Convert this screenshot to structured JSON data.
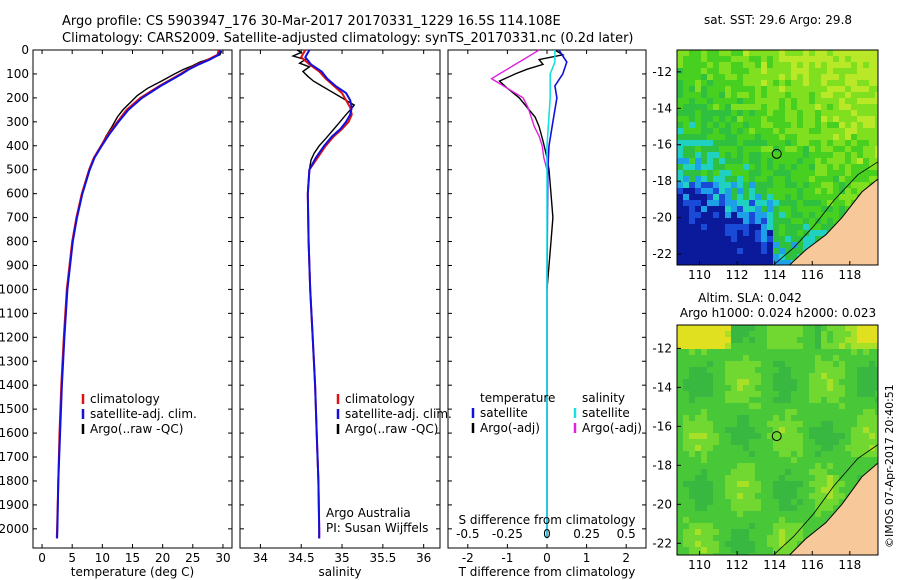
{
  "header": {
    "line1": "Argo profile: CS 5903947_176 30-Mar-2017 20170331_1229 16.5S 114.108E",
    "line2": "Climatology: CARS2009. Satellite-adjusted climatology: synTS_20170331.nc (0.2d later)"
  },
  "colors": {
    "climatology": "#e01010",
    "satellite": "#1010e0",
    "argo": "#000000",
    "sat_salinity": "#18e0e0",
    "argo_adj_salinity": "#e020e0",
    "land": "#f7c89a"
  },
  "depth_axis": {
    "ylim": [
      0,
      2080
    ],
    "ticks": [
      0,
      100,
      200,
      300,
      400,
      500,
      600,
      700,
      800,
      900,
      1000,
      1100,
      1200,
      1300,
      1400,
      1500,
      1600,
      1700,
      1800,
      1900,
      2000
    ]
  },
  "chart_data": [
    {
      "type": "line",
      "name": "temperature",
      "xlabel": "temperature (deg C)",
      "xlim": [
        -1.5,
        31.5
      ],
      "xticks": [
        0,
        5,
        10,
        15,
        20,
        25,
        30
      ],
      "legend": [
        "climatology",
        "satellite-adj. clim.",
        "Argo(..raw -QC)"
      ],
      "series": [
        {
          "name": "climatology",
          "depth": [
            0,
            20,
            40,
            60,
            80,
            100,
            150,
            200,
            250,
            300,
            350,
            400,
            450,
            500,
            600,
            700,
            800,
            1000,
            1200,
            1400,
            1600,
            1800,
            2000,
            2040
          ],
          "values": [
            29.3,
            29.1,
            27.5,
            25.8,
            24.2,
            23.0,
            19.5,
            16.3,
            14.0,
            12.5,
            11.0,
            9.8,
            8.6,
            7.8,
            6.6,
            5.7,
            5.0,
            4.1,
            3.6,
            3.2,
            2.9,
            2.7,
            2.5,
            2.45
          ]
        },
        {
          "name": "satellite-adj. clim.",
          "depth": [
            0,
            20,
            40,
            60,
            80,
            100,
            150,
            200,
            250,
            300,
            350,
            400,
            450,
            500,
            600,
            700,
            800,
            1000,
            1200,
            1400,
            1600,
            1800,
            2000,
            2040
          ],
          "values": [
            29.6,
            29.3,
            27.8,
            26.0,
            24.4,
            23.2,
            19.7,
            16.6,
            14.3,
            12.7,
            11.2,
            9.9,
            8.7,
            7.9,
            6.7,
            5.8,
            5.1,
            4.2,
            3.7,
            3.3,
            3.0,
            2.7,
            2.55,
            2.5
          ]
        },
        {
          "name": "Argo(..raw -QC)",
          "depth": [
            5,
            20,
            35,
            50,
            65,
            80,
            100,
            130,
            160,
            190,
            220,
            250,
            280,
            320,
            360,
            400,
            450,
            500
          ],
          "values": [
            29.8,
            29.5,
            28.0,
            26.2,
            25.0,
            23.5,
            22.0,
            19.8,
            17.5,
            15.8,
            14.6,
            13.4,
            12.5,
            11.6,
            10.6,
            9.8,
            8.7,
            7.8
          ]
        }
      ]
    },
    {
      "type": "line",
      "name": "salinity",
      "xlabel": "salinity",
      "xlim": [
        33.75,
        36.2
      ],
      "xticks": [
        34,
        34.5,
        35,
        35.5,
        36
      ],
      "legend": [
        "climatology",
        "satellite-adj. clim.",
        "Argo(..raw -QC)"
      ],
      "annotations": [
        "Argo Australia",
        "PI: Susan Wijffels"
      ],
      "series": [
        {
          "name": "climatology",
          "depth": [
            0,
            30,
            60,
            90,
            120,
            150,
            180,
            210,
            240,
            270,
            300,
            330,
            360,
            400,
            450,
            500,
            600,
            800,
            1000,
            1200,
            1400,
            1600,
            1800,
            2000,
            2040
          ],
          "values": [
            34.55,
            34.5,
            34.6,
            34.72,
            34.8,
            34.9,
            35.0,
            35.05,
            35.1,
            35.12,
            35.08,
            35.0,
            34.9,
            34.8,
            34.7,
            34.6,
            34.58,
            34.59,
            34.61,
            34.64,
            34.67,
            34.69,
            34.71,
            34.72,
            34.72
          ]
        },
        {
          "name": "satellite-adj. clim.",
          "depth": [
            0,
            30,
            60,
            90,
            120,
            150,
            180,
            210,
            240,
            270,
            300,
            330,
            360,
            400,
            450,
            500,
            600,
            800,
            1000,
            1200,
            1400,
            1600,
            1800,
            2000,
            2040
          ],
          "values": [
            34.6,
            34.55,
            34.62,
            34.75,
            34.82,
            34.92,
            35.05,
            35.1,
            35.12,
            35.1,
            35.05,
            34.98,
            34.88,
            34.78,
            34.68,
            34.6,
            34.58,
            34.59,
            34.61,
            34.64,
            34.67,
            34.69,
            34.71,
            34.72,
            34.72
          ]
        },
        {
          "name": "Argo(..raw -QC)",
          "depth": [
            0,
            10,
            25,
            40,
            55,
            70,
            90,
            110,
            130,
            150,
            170,
            190,
            210,
            230,
            250,
            270,
            290,
            310,
            330,
            350,
            370,
            400,
            430,
            460,
            500
          ],
          "values": [
            34.45,
            34.5,
            34.4,
            34.55,
            34.48,
            34.6,
            34.52,
            34.58,
            34.65,
            34.75,
            34.85,
            34.95,
            35.05,
            35.15,
            35.1,
            35.05,
            35.0,
            34.95,
            34.9,
            34.85,
            34.8,
            34.72,
            34.66,
            34.62,
            34.6
          ]
        }
      ]
    },
    {
      "type": "line",
      "name": "difference",
      "xlabel": "T difference from climatology",
      "top_xlabel": "S difference from climatology",
      "xlim": [
        -2.5,
        2.5
      ],
      "xticks": [
        -2,
        -1,
        0,
        1,
        2
      ],
      "xtick_labels": [
        "-2",
        "-1",
        "0",
        "1",
        "2"
      ],
      "s_ticks": [
        -0.5,
        -0.25,
        0,
        0.25,
        0.5
      ],
      "s_tick_labels": [
        "-0.5",
        "-0.25",
        "0",
        "0.25",
        "0.5"
      ],
      "legend_headers": [
        "temperature",
        "salinity"
      ],
      "legend": [
        "satellite",
        "Argo(-adj)",
        "satellite",
        "Argo(-adj)"
      ],
      "series": [
        {
          "name": "temperature satellite",
          "depth": [
            0,
            50,
            100,
            150,
            200,
            300,
            400,
            500,
            700,
            1000,
            1500,
            2040
          ],
          "values": [
            0.3,
            0.5,
            0.4,
            0.2,
            0.25,
            0.15,
            0.05,
            0.02,
            0.01,
            0.0,
            0.0,
            0.0
          ]
        },
        {
          "name": "temperature Argo(-adj)",
          "depth": [
            0,
            20,
            40,
            60,
            80,
            100,
            130,
            160,
            200,
            240,
            280,
            320,
            380,
            450,
            500,
            600,
            700,
            800,
            900,
            1000
          ],
          "values": [
            0.2,
            0.4,
            -0.2,
            -0.1,
            -0.5,
            -0.8,
            -1.2,
            -1.0,
            -0.7,
            -0.5,
            -0.3,
            -0.2,
            -0.1,
            0.0,
            0.05,
            0.1,
            0.15,
            0.1,
            0.05,
            0.0
          ]
        },
        {
          "name": "salinity satellite",
          "depth": [
            0,
            50,
            100,
            150,
            200,
            300,
            400,
            500,
            700,
            1000,
            1500,
            2040
          ],
          "values": [
            0.05,
            0.05,
            0.02,
            0.02,
            0.02,
            0.01,
            0.0,
            0.0,
            0.0,
            0.0,
            0.0,
            0.0
          ]
        },
        {
          "name": "salinity Argo(-adj)",
          "depth": [
            0,
            20,
            40,
            60,
            80,
            100,
            120,
            140,
            160,
            180,
            200,
            240,
            280,
            320,
            360,
            400,
            450,
            500
          ],
          "values": [
            -0.05,
            -0.1,
            -0.15,
            -0.2,
            -0.25,
            -0.3,
            -0.35,
            -0.3,
            -0.25,
            -0.2,
            -0.15,
            -0.12,
            -0.1,
            -0.08,
            -0.05,
            -0.03,
            -0.02,
            0.0
          ]
        }
      ]
    },
    {
      "type": "heatmap",
      "name": "sst-map",
      "title": "sat. SST: 29.6  Argo: 29.8",
      "xticks": [
        110,
        112,
        114,
        116,
        118
      ],
      "yticks": [
        -12,
        -14,
        -16,
        -18,
        -20,
        -22
      ],
      "xlim": [
        108.8,
        119.5
      ],
      "ylim": [
        -22.6,
        -10.8
      ],
      "argo_position": [
        114.108,
        -16.5
      ]
    },
    {
      "type": "heatmap",
      "name": "sla-map",
      "title1": "Altim. SLA: 0.042",
      "title2": "Argo h1000: 0.024 h2000: 0.023",
      "xticks": [
        110,
        112,
        114,
        116,
        118
      ],
      "yticks": [
        -12,
        -14,
        -16,
        -18,
        -20,
        -22
      ],
      "xlim": [
        108.8,
        119.5
      ],
      "ylim": [
        -22.6,
        -10.8
      ],
      "argo_position": [
        114.108,
        -16.5
      ]
    }
  ],
  "footer": {
    "stamp": "©IMOS 07-Apr-2017 20:40:51"
  }
}
